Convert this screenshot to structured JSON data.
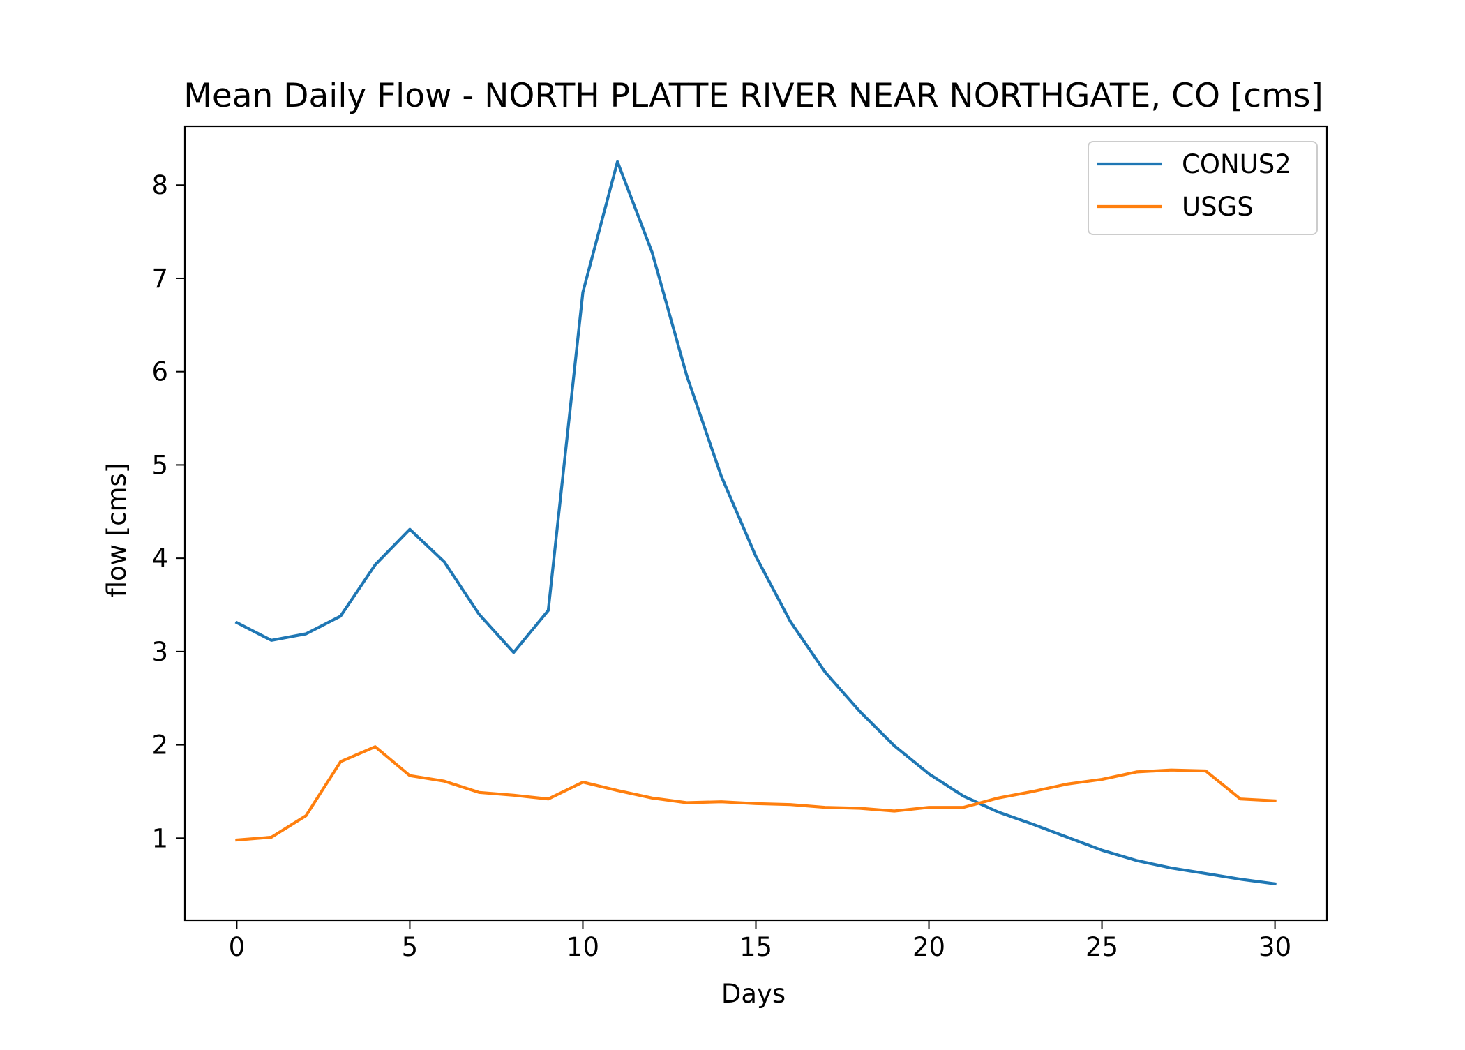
{
  "chart_data": {
    "type": "line",
    "title": "Mean Daily Flow - NORTH PLATTE RIVER NEAR NORTHGATE, CO [cms]",
    "xlabel": "Days",
    "ylabel": "flow [cms]",
    "xlim": [
      -1.5,
      31.5
    ],
    "ylim": [
      0.12,
      8.63
    ],
    "xticks": [
      0,
      5,
      10,
      15,
      20,
      25,
      30
    ],
    "yticks": [
      1,
      2,
      3,
      4,
      5,
      6,
      7,
      8
    ],
    "grid": false,
    "legend_position": "top-right",
    "x": [
      0,
      1,
      2,
      3,
      4,
      5,
      6,
      7,
      8,
      9,
      10,
      11,
      12,
      13,
      14,
      15,
      16,
      17,
      18,
      19,
      20,
      21,
      22,
      23,
      24,
      25,
      26,
      27,
      28,
      29,
      30
    ],
    "series": [
      {
        "name": "CONUS2",
        "color": "#1f77b4",
        "values": [
          3.31,
          3.12,
          3.19,
          3.38,
          3.93,
          4.31,
          3.96,
          3.4,
          2.99,
          3.44,
          6.85,
          8.25,
          7.28,
          5.96,
          4.88,
          4.02,
          3.32,
          2.78,
          2.36,
          1.99,
          1.69,
          1.45,
          1.28,
          1.15,
          1.01,
          0.87,
          0.76,
          0.68,
          0.62,
          0.56,
          0.51
        ]
      },
      {
        "name": "USGS",
        "color": "#ff7f0e",
        "values": [
          0.98,
          1.01,
          1.24,
          1.82,
          1.98,
          1.67,
          1.61,
          1.49,
          1.46,
          1.42,
          1.6,
          1.51,
          1.43,
          1.38,
          1.39,
          1.37,
          1.36,
          1.33,
          1.32,
          1.29,
          1.33,
          1.33,
          1.43,
          1.5,
          1.58,
          1.63,
          1.71,
          1.73,
          1.72,
          1.42,
          1.4
        ]
      }
    ]
  }
}
